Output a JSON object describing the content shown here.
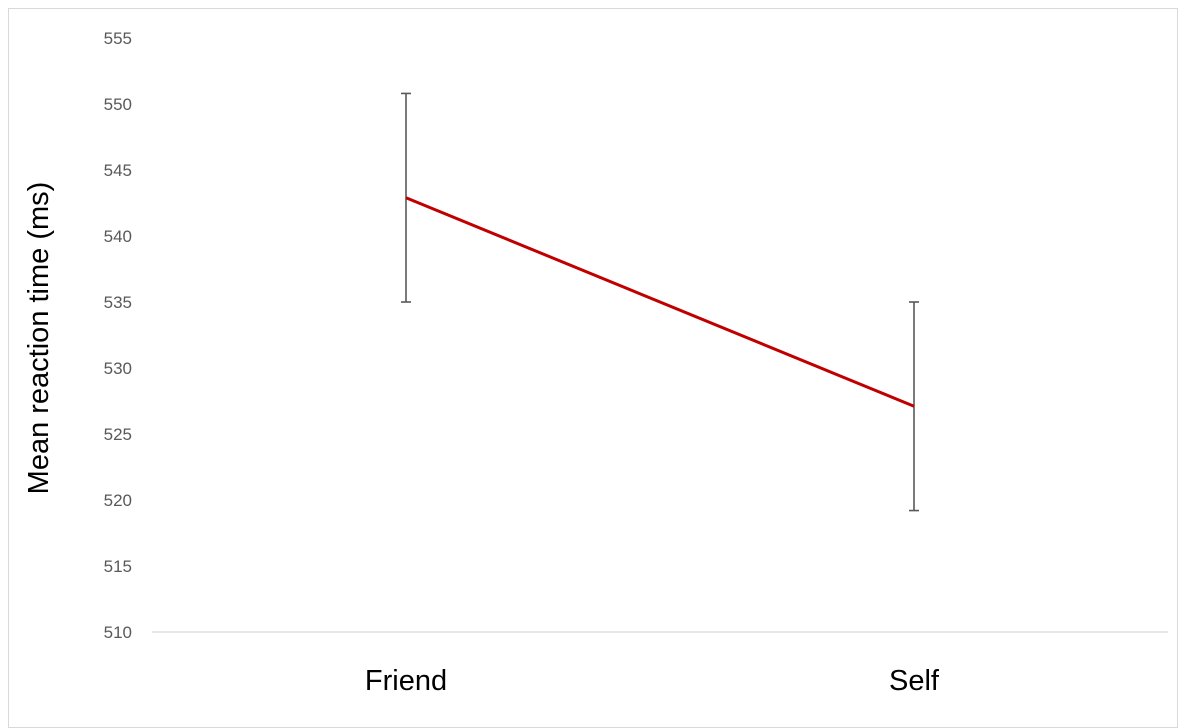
{
  "chart_data": {
    "type": "line",
    "categories": [
      "Friend",
      "Self"
    ],
    "series": [
      {
        "values": [
          542.9,
          527.1
        ],
        "error_upper": [
          550.8,
          535.0
        ],
        "error_lower": [
          535.0,
          519.2
        ],
        "color": "#c00000"
      }
    ],
    "ylabel": "Mean reaction time (ms)",
    "xlabel": "",
    "ylim": [
      510,
      555
    ],
    "yticks": [
      510,
      515,
      520,
      525,
      530,
      535,
      540,
      545,
      550,
      555
    ],
    "grid": false,
    "legend": "none",
    "colors": {
      "line": "#c00000",
      "error_bar": "#595959",
      "axis": "#d9d9d9",
      "tick_text": "#595959"
    }
  }
}
